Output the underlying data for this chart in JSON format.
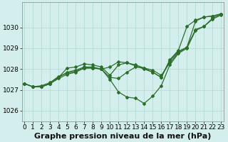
{
  "xlabel": "Graphe pression niveau de la mer (hPa)",
  "bg_color": "#d4eeed",
  "grid_color": "#afd8d0",
  "line_color": "#2d6e2d",
  "xlim": [
    -0.3,
    23.3
  ],
  "ylim": [
    1025.5,
    1031.2
  ],
  "yticks": [
    1026,
    1027,
    1028,
    1029,
    1030
  ],
  "xticks": [
    0,
    1,
    2,
    3,
    4,
    5,
    6,
    7,
    8,
    9,
    10,
    11,
    12,
    13,
    14,
    15,
    16,
    17,
    18,
    19,
    20,
    21,
    22,
    23
  ],
  "series": [
    [
      1027.3,
      1027.15,
      1027.15,
      1027.3,
      1027.55,
      1027.75,
      1027.85,
      1028.05,
      1028.05,
      1028.0,
      1027.5,
      1026.9,
      1026.65,
      1026.6,
      1026.35,
      1026.7,
      1027.2,
      1028.2,
      1028.75,
      1029.0,
      1029.85,
      1030.05,
      1030.45,
      1030.65
    ],
    [
      1027.3,
      1027.15,
      1027.15,
      1027.3,
      1027.6,
      1028.05,
      1028.1,
      1028.25,
      1028.2,
      1028.1,
      1027.7,
      1028.2,
      1028.3,
      1028.15,
      1028.0,
      1027.85,
      1027.6,
      1028.45,
      1028.9,
      1030.05,
      1030.35,
      1030.5,
      1030.55,
      1030.65
    ],
    [
      1027.3,
      1027.15,
      1027.15,
      1027.3,
      1027.6,
      1027.85,
      1027.95,
      1028.1,
      1028.1,
      1028.0,
      1027.6,
      1027.55,
      1027.85,
      1028.1,
      1028.05,
      1027.95,
      1027.7,
      1028.3,
      1028.8,
      1029.05,
      1029.9,
      1030.05,
      1030.4,
      1030.6
    ],
    [
      1027.3,
      1027.15,
      1027.2,
      1027.35,
      1027.65,
      1027.8,
      1027.9,
      1028.05,
      1028.05,
      1028.0,
      1028.1,
      1028.35,
      1028.3,
      1028.2,
      1028.05,
      1027.85,
      1027.6,
      1028.4,
      1028.85,
      1029.05,
      1030.3,
      1030.5,
      1030.55,
      1030.65
    ]
  ],
  "xlabel_fontsize": 8,
  "tick_fontsize": 6.5,
  "marker": "D",
  "markersize": 2,
  "linewidth": 0.9
}
